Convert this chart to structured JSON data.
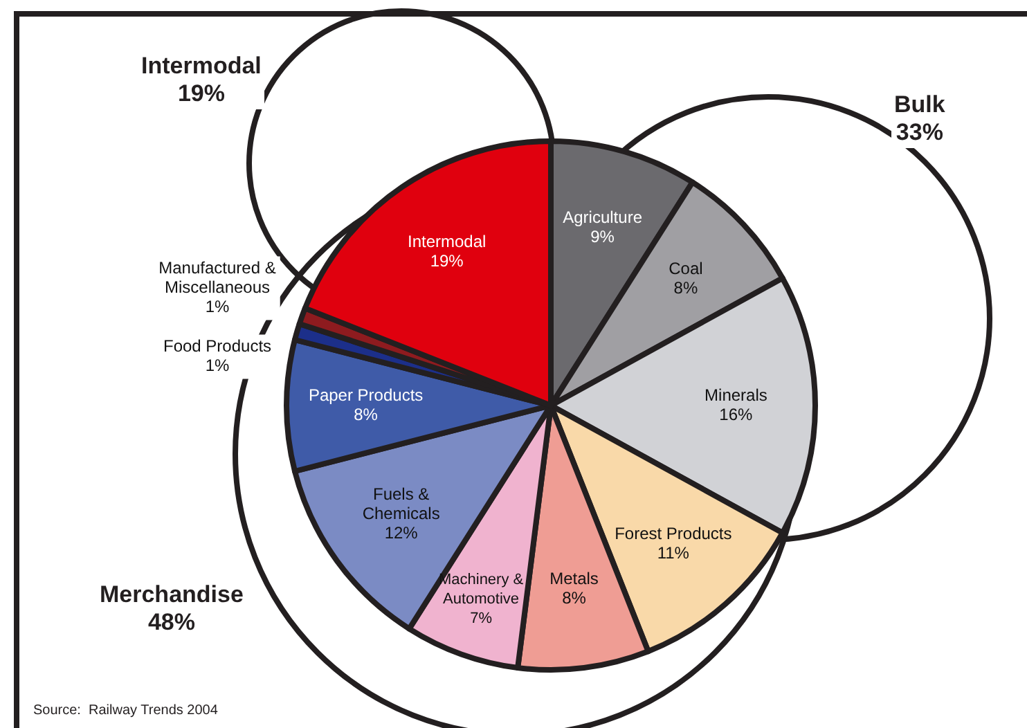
{
  "chart_data": {
    "type": "pie",
    "categories": [
      "Agriculture",
      "Coal",
      "Minerals",
      "Forest Products",
      "Metals",
      "Machinery & Automotive",
      "Fuels & Chemicals",
      "Paper Products",
      "Food Products",
      "Manufactured & Miscellaneous",
      "Intermodal"
    ],
    "values": [
      9,
      8,
      16,
      11,
      8,
      7,
      12,
      8,
      1,
      1,
      19
    ],
    "value_labels": [
      "9%",
      "8%",
      "16%",
      "11%",
      "8%",
      "7%",
      "12%",
      "8%",
      "1%",
      "1%",
      "19%"
    ],
    "colors": [
      "#6b6a6e",
      "#a09fa3",
      "#d1d2d6",
      "#f9d9a9",
      "#ef9d94",
      "#f0b3cf",
      "#7b8bc4",
      "#3f5ba8",
      "#1c2f8a",
      "#8e1b1f",
      "#e0000e"
    ],
    "annotations": [
      "Intermodal\n19%",
      "Bulk\n33%",
      "Merchandise\n48%",
      "Source:  Railway Trends 2004"
    ],
    "legend": false
  }
}
